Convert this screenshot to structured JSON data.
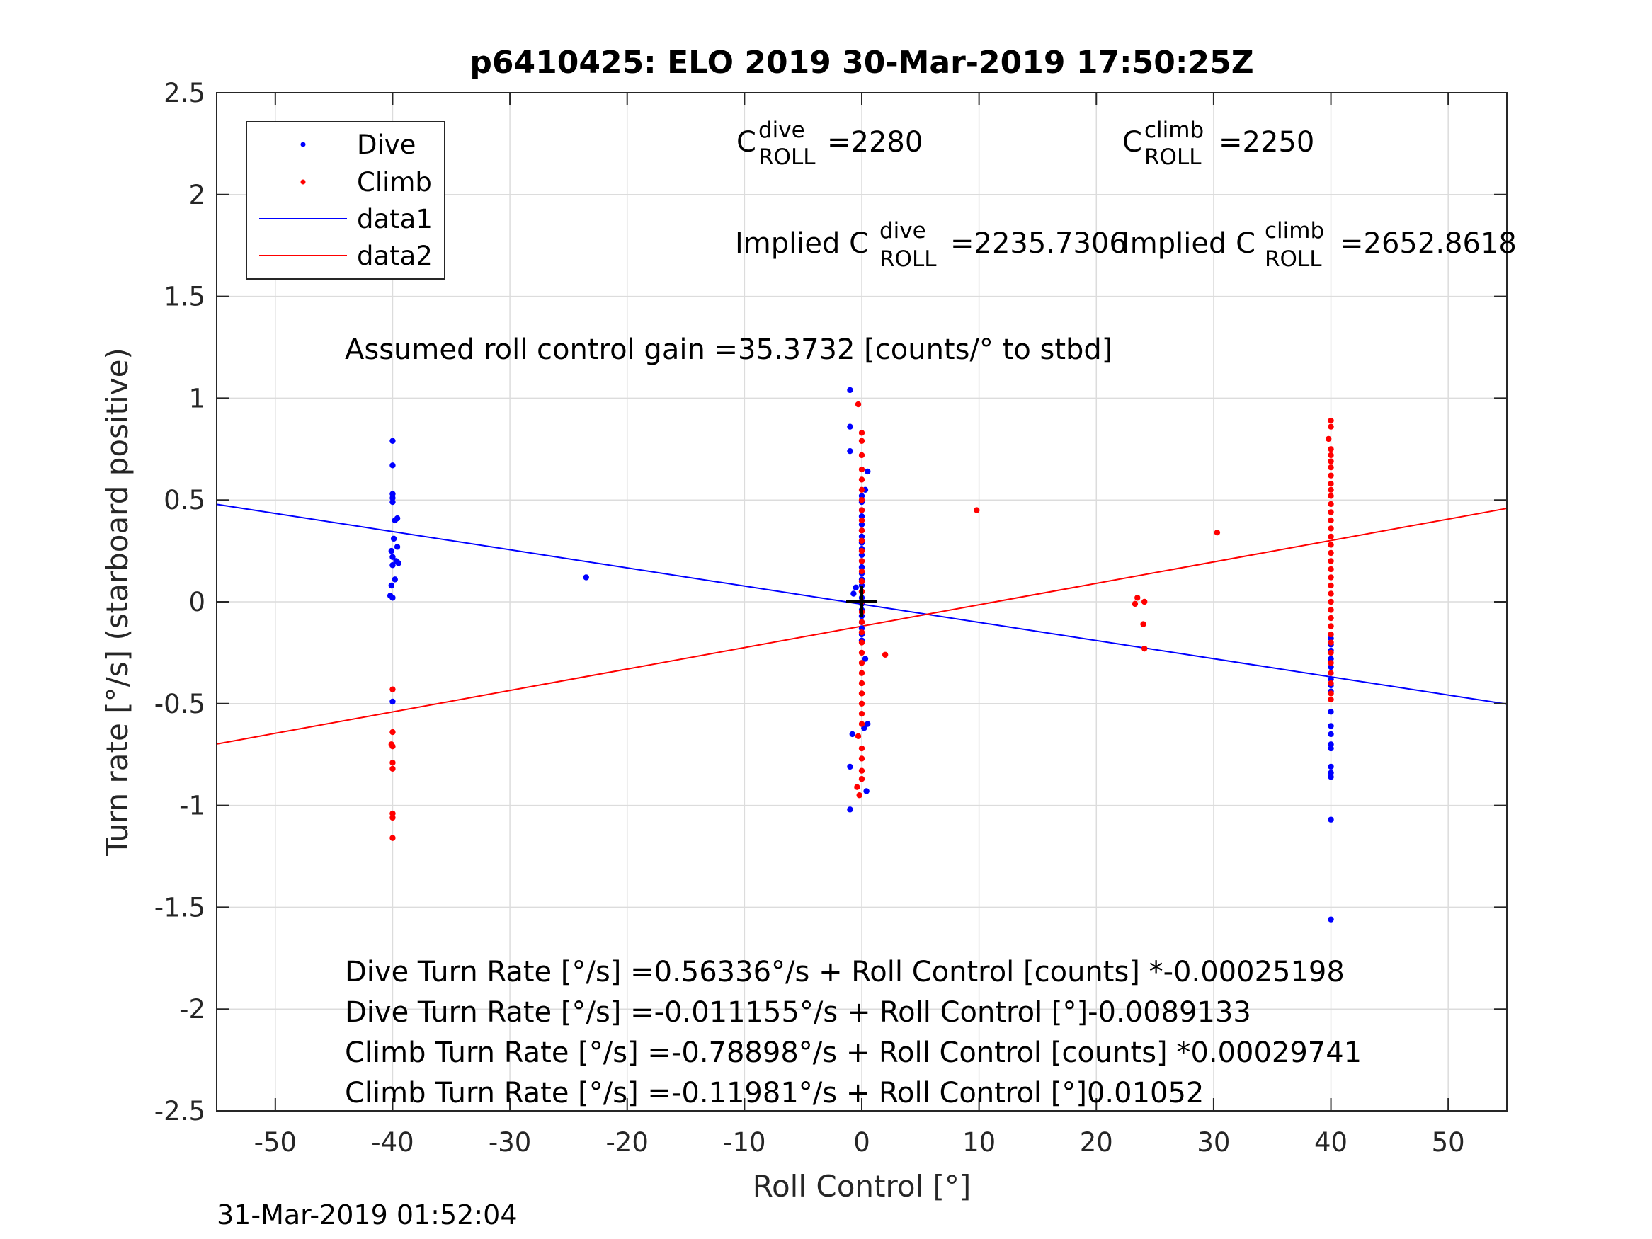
{
  "chart_data": {
    "type": "scatter",
    "title": "p6410425: ELO 2019 30-Mar-2019 17:50:25Z",
    "xlabel": "Roll Control [°]",
    "ylabel": "Turn rate [°/s] (starboard positive)",
    "xlim": [
      -55,
      55
    ],
    "ylim": [
      -2.5,
      2.5
    ],
    "xticks": [
      -50,
      -40,
      -30,
      -20,
      -10,
      0,
      10,
      20,
      30,
      40,
      50
    ],
    "xtick_labels": [
      "-50",
      "-40",
      "-30",
      "-20",
      "-10",
      "0",
      "10",
      "20",
      "30",
      "40",
      "50"
    ],
    "yticks": [
      -2.5,
      -2,
      -1.5,
      -1,
      -0.5,
      0,
      0.5,
      1,
      1.5,
      2,
      2.5
    ],
    "ytick_labels": [
      "-2.5",
      "-2",
      "-1.5",
      "-1",
      "-0.5",
      "0",
      "0.5",
      "1",
      "1.5",
      "2",
      "2.5"
    ],
    "grid": true,
    "legend_position": "top-left",
    "colors": {
      "dive": "#0000ff",
      "climb": "#ff0000",
      "axes": "#262626",
      "grid": "#dcdcdc",
      "center_marker": "#000000"
    },
    "series": [
      {
        "name": "Dive",
        "kind": "points",
        "color": "#0000ff",
        "points": [
          [
            -40,
            0.79
          ],
          [
            -40,
            0.67
          ],
          [
            -40,
            0.53
          ],
          [
            -40,
            0.51
          ],
          [
            -40,
            0.49
          ],
          [
            -39.6,
            0.41
          ],
          [
            -39.8,
            0.4
          ],
          [
            -39.9,
            0.31
          ],
          [
            -39.6,
            0.27
          ],
          [
            -40.1,
            0.25
          ],
          [
            -40,
            0.22
          ],
          [
            -39.7,
            0.2
          ],
          [
            -39.5,
            0.19
          ],
          [
            -40,
            0.18
          ],
          [
            -39.8,
            0.11
          ],
          [
            -40.1,
            0.08
          ],
          [
            -40.2,
            0.03
          ],
          [
            -40,
            0.02
          ],
          [
            -40,
            -0.49
          ],
          [
            -23.5,
            0.12
          ],
          [
            -1,
            1.04
          ],
          [
            -1,
            0.86
          ],
          [
            -1,
            0.74
          ],
          [
            0.5,
            0.64
          ],
          [
            0.3,
            0.55
          ],
          [
            0,
            0.52
          ],
          [
            0,
            0.49
          ],
          [
            0,
            0.45
          ],
          [
            0,
            0.42
          ],
          [
            0,
            0.38
          ],
          [
            0,
            0.35
          ],
          [
            0,
            0.32
          ],
          [
            0,
            0.29
          ],
          [
            0,
            0.26
          ],
          [
            0,
            0.23
          ],
          [
            0,
            0.2
          ],
          [
            0,
            0.17
          ],
          [
            0,
            0.14
          ],
          [
            0,
            0.11
          ],
          [
            0,
            0.08
          ],
          [
            -0.5,
            0.07
          ],
          [
            -0.7,
            0.04
          ],
          [
            0,
            0.05
          ],
          [
            0,
            0.02
          ],
          [
            0,
            -0.01
          ],
          [
            0,
            -0.04
          ],
          [
            0,
            -0.07
          ],
          [
            0,
            -0.1
          ],
          [
            0,
            -0.13
          ],
          [
            0,
            -0.16
          ],
          [
            0,
            -0.19
          ],
          [
            0.3,
            -0.28
          ],
          [
            0.5,
            -0.6
          ],
          [
            0.2,
            -0.62
          ],
          [
            -0.8,
            -0.65
          ],
          [
            -1,
            -0.81
          ],
          [
            0.4,
            -0.93
          ],
          [
            -1,
            -1.02
          ],
          [
            40,
            -0.18
          ],
          [
            40,
            -0.21
          ],
          [
            40,
            -0.24
          ],
          [
            40,
            -0.28
          ],
          [
            40,
            -0.32
          ],
          [
            40,
            -0.38
          ],
          [
            40,
            -0.41
          ],
          [
            40,
            -0.44
          ],
          [
            40,
            -0.54
          ],
          [
            40,
            -0.61
          ],
          [
            40,
            -0.65
          ],
          [
            40,
            -0.7
          ],
          [
            40,
            -0.72
          ],
          [
            40,
            -0.81
          ],
          [
            40,
            -0.84
          ],
          [
            40,
            -0.86
          ],
          [
            40,
            -1.07
          ],
          [
            40,
            -1.56
          ]
        ]
      },
      {
        "name": "Climb",
        "kind": "points",
        "color": "#ff0000",
        "points": [
          [
            -40,
            -0.43
          ],
          [
            -40,
            -0.64
          ],
          [
            -40.1,
            -0.7
          ],
          [
            -40,
            -0.71
          ],
          [
            -40,
            -0.79
          ],
          [
            -40,
            -0.82
          ],
          [
            -40,
            -1.04
          ],
          [
            -40,
            -1.06
          ],
          [
            -40,
            -1.16
          ],
          [
            -0.3,
            0.97
          ],
          [
            0,
            0.83
          ],
          [
            0,
            0.79
          ],
          [
            0,
            0.72
          ],
          [
            0,
            0.65
          ],
          [
            0,
            0.6
          ],
          [
            0,
            0.55
          ],
          [
            0,
            0.5
          ],
          [
            0,
            0.45
          ],
          [
            0,
            0.4
          ],
          [
            0,
            0.35
          ],
          [
            0,
            0.3
          ],
          [
            0,
            0.25
          ],
          [
            0,
            0.2
          ],
          [
            0,
            0.15
          ],
          [
            0,
            0.1
          ],
          [
            0,
            0.05
          ],
          [
            0,
            0.0
          ],
          [
            0,
            -0.05
          ],
          [
            0,
            -0.1
          ],
          [
            0,
            -0.15
          ],
          [
            0,
            -0.2
          ],
          [
            0,
            -0.25
          ],
          [
            0,
            -0.3
          ],
          [
            0,
            -0.35
          ],
          [
            0,
            -0.4
          ],
          [
            0,
            -0.45
          ],
          [
            0,
            -0.5
          ],
          [
            0,
            -0.55
          ],
          [
            0,
            -0.6
          ],
          [
            -0.3,
            -0.66
          ],
          [
            0,
            -0.72
          ],
          [
            0,
            -0.77
          ],
          [
            0,
            -0.83
          ],
          [
            0,
            -0.87
          ],
          [
            -0.4,
            -0.91
          ],
          [
            -0.2,
            -0.95
          ],
          [
            2,
            -0.26
          ],
          [
            9.8,
            0.45
          ],
          [
            23.5,
            0.02
          ],
          [
            23.3,
            -0.01
          ],
          [
            24.1,
            0.0
          ],
          [
            24,
            -0.11
          ],
          [
            24.1,
            -0.23
          ],
          [
            30.3,
            0.34
          ],
          [
            40,
            0.89
          ],
          [
            40,
            0.86
          ],
          [
            39.8,
            0.8
          ],
          [
            40,
            0.75
          ],
          [
            40,
            0.72
          ],
          [
            40,
            0.69
          ],
          [
            40,
            0.66
          ],
          [
            40,
            0.62
          ],
          [
            40,
            0.58
          ],
          [
            40,
            0.55
          ],
          [
            40,
            0.52
          ],
          [
            40,
            0.48
          ],
          [
            40,
            0.44
          ],
          [
            40,
            0.4
          ],
          [
            40,
            0.36
          ],
          [
            40,
            0.32
          ],
          [
            40,
            0.28
          ],
          [
            40,
            0.24
          ],
          [
            40,
            0.2
          ],
          [
            40,
            0.16
          ],
          [
            40,
            0.12
          ],
          [
            40,
            0.08
          ],
          [
            40,
            0.04
          ],
          [
            40,
            0.0
          ],
          [
            40,
            -0.04
          ],
          [
            40,
            -0.08
          ],
          [
            40,
            -0.12
          ],
          [
            40,
            -0.16
          ],
          [
            40,
            -0.2
          ],
          [
            40,
            -0.25
          ],
          [
            40,
            -0.3
          ],
          [
            40,
            -0.35
          ],
          [
            40,
            -0.4
          ],
          [
            40,
            -0.45
          ],
          [
            40,
            -0.48
          ]
        ]
      },
      {
        "name": "data1",
        "kind": "line",
        "color": "#0000ff",
        "x": [
          -55,
          55
        ],
        "y": [
          0.4786,
          -0.5024
        ]
      },
      {
        "name": "data2",
        "kind": "line",
        "color": "#ff0000",
        "x": [
          -55,
          55
        ],
        "y": [
          -0.6984,
          0.4588
        ]
      }
    ],
    "center_marker": {
      "x": 0,
      "y": 0,
      "symbol": "+"
    },
    "annotations": {
      "c_dive": {
        "base": "C",
        "sup": "dive",
        "sub": "ROLL",
        "value": "=2280"
      },
      "c_climb": {
        "base": "C",
        "sup": "climb",
        "sub": "ROLL",
        "value": "=2250"
      },
      "implied_dive": {
        "base": "Implied C",
        "sup": "dive",
        "sub": "ROLL",
        "value": "=2235.7306"
      },
      "implied_climb": {
        "base": "Implied C",
        "sup": "climb",
        "sub": "ROLL",
        "value": "=2652.8618"
      },
      "gain": "Assumed roll control gain =35.3732 [counts/° to stbd]",
      "fits": [
        "Dive Turn Rate [°/s] =0.56336°/s + Roll Control [counts] *-0.00025198",
        "Dive Turn Rate [°/s] =-0.011155°/s + Roll Control [°]-0.0089133",
        "Climb Turn Rate [°/s] =-0.78898°/s + Roll Control [counts] *0.00029741",
        "Climb Turn Rate [°/s] =-0.11981°/s + Roll Control [°]0.01052"
      ]
    },
    "timestamp": "31-Mar-2019 01:52:04"
  }
}
